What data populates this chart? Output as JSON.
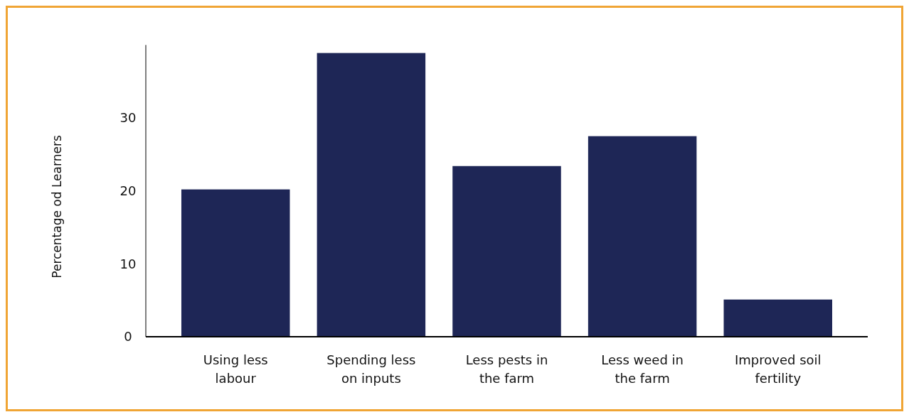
{
  "chart_data": {
    "type": "bar",
    "ylabel": "Percentage od Learners",
    "categories": [
      "Using less labour",
      "Spending less on inputs",
      "Less pests in the farm",
      "Less weed in the farm",
      "Improved soil fertility"
    ],
    "values": [
      20.2,
      38.9,
      23.4,
      27.5,
      5.1
    ],
    "color": "#1e2656",
    "ylim": [
      0,
      40
    ],
    "yticks": [
      0,
      10,
      20,
      30
    ],
    "grid": false
  }
}
